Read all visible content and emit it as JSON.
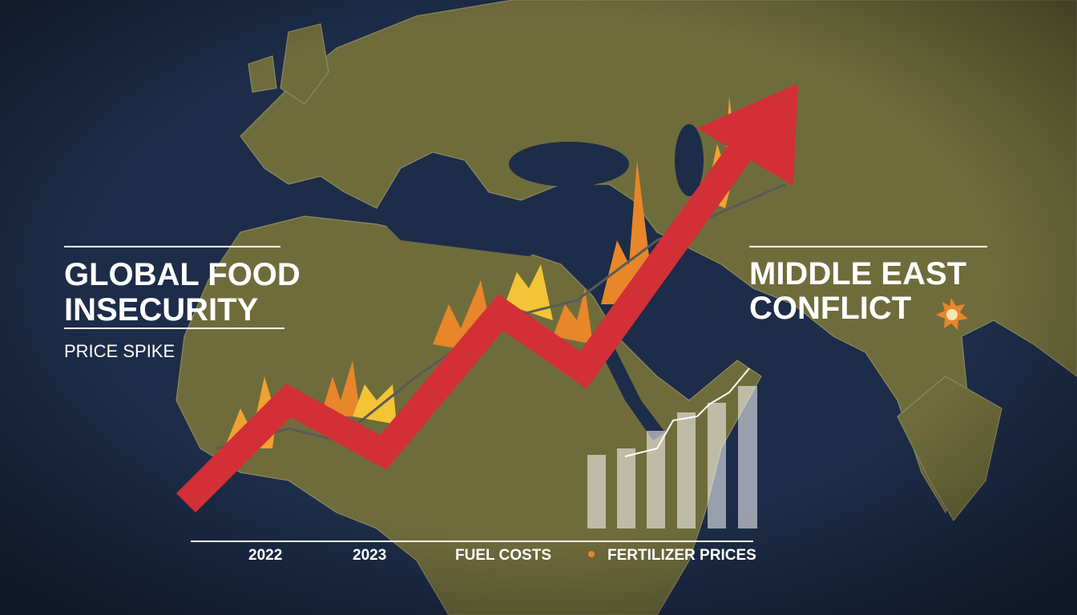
{
  "left_panel": {
    "title_lines": [
      "GLOBAL FOOD",
      "INSECURITY"
    ],
    "subtitle": "PRICE SPIKE"
  },
  "right_panel": {
    "title_lines": [
      "MIDDLE EAST",
      "CONFLICT"
    ]
  },
  "footer": {
    "labels": [
      "2022",
      "2023",
      "FUEL COSTS",
      "FERTILIZER PRICES"
    ]
  }
}
